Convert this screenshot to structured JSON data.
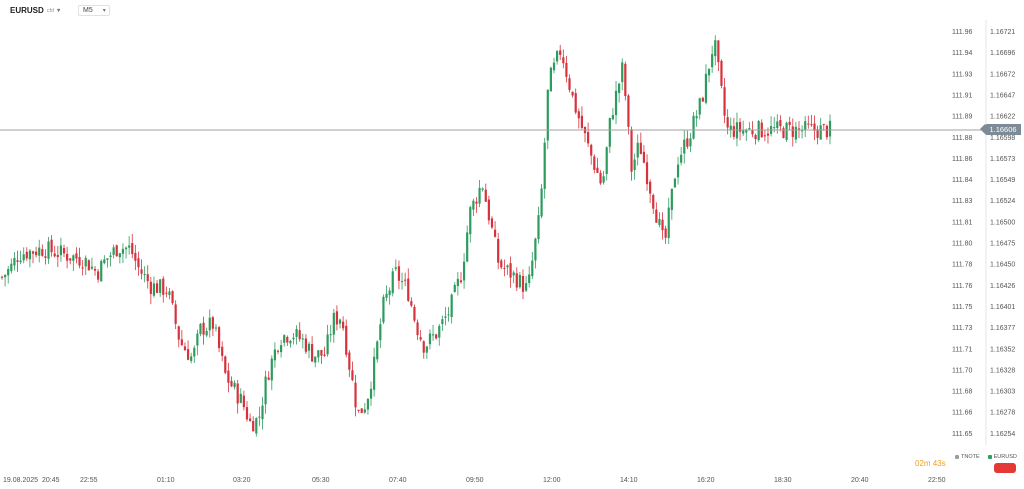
{
  "toolbar": {
    "symbol": "EURUSD",
    "symbol_sub": "cfd",
    "timeframe": "M5"
  },
  "axis_left": {
    "ticks": [
      111.96,
      111.94,
      111.93,
      111.91,
      111.89,
      111.88,
      111.86,
      111.84,
      111.83,
      111.81,
      111.8,
      111.78,
      111.76,
      111.75,
      111.73,
      111.71,
      111.7,
      111.68,
      111.66,
      111.65
    ],
    "labels": [
      "111.96",
      "111.94",
      "111.93",
      "111.91",
      "111.89",
      "111.88",
      "111.86",
      "111.84",
      "111.83",
      "111.81",
      "111.80",
      "111.78",
      "111.76",
      "111.75",
      "111.73",
      "111.71",
      "111.70",
      "111.68",
      "111.66",
      "111.65"
    ]
  },
  "axis_right": {
    "labels": [
      "1.16721",
      "1.16696",
      "1.16672",
      "1.16647",
      "1.16622",
      "1.16598",
      "1.16573",
      "1.16549",
      "1.16524",
      "1.16500",
      "1.16475",
      "1.16450",
      "1.16426",
      "1.16401",
      "1.16377",
      "1.16352",
      "1.16328",
      "1.16303",
      "1.16278",
      "1.16254"
    ]
  },
  "time_axis": [
    "19.08.2025",
    "20:45",
    "22:55",
    "01:10",
    "03:20",
    "05:30",
    "07:40",
    "09:50",
    "12:00",
    "14:10",
    "16:20",
    "18:30",
    "20:40",
    "22:50"
  ],
  "current_price": {
    "label": "1.16606",
    "value": 1.16606
  },
  "timer": "02m 43s",
  "legend": [
    {
      "label": "TNOTE",
      "color": "#9e9e9e"
    },
    {
      "label": "EURUSD",
      "color": "#26a65b"
    }
  ],
  "colors": {
    "up": "#2e9b5e",
    "down": "#d6323c",
    "grid_line": "#b0b0b0",
    "accent": "#f0a020",
    "action": "#e53935"
  },
  "chart_data": {
    "type": "candlestick",
    "y_range": [
      1.1624,
      1.1674
    ],
    "x_range": [
      0,
      1
    ],
    "x_tick_fractions": [
      0.02,
      0.057,
      0.097,
      0.174,
      0.267,
      0.355,
      0.452,
      0.55,
      0.649,
      0.744,
      0.836,
      0.944,
      1.0,
      1.09
    ],
    "close_path_x": [
      0,
      0.01,
      0.02,
      0.05,
      0.08,
      0.1,
      0.115,
      0.125,
      0.14,
      0.155,
      0.165,
      0.18,
      0.2,
      0.215,
      0.23,
      0.24,
      0.255,
      0.27,
      0.29,
      0.3,
      0.31,
      0.32,
      0.335,
      0.35,
      0.365,
      0.375,
      0.39,
      0.4,
      0.41,
      0.42,
      0.43,
      0.44,
      0.45,
      0.46,
      0.475,
      0.49,
      0.5,
      0.51,
      0.525,
      0.54,
      0.555,
      0.565,
      0.58,
      0.6,
      0.62,
      0.635,
      0.65,
      0.66,
      0.675,
      0.69,
      0.7,
      0.71,
      0.725,
      0.735,
      0.75,
      0.76,
      0.77,
      0.785,
      0.8,
      0.815,
      0.83,
      0.845,
      0.86,
      0.875
    ],
    "close_path_y": [
      1.16435,
      1.16445,
      1.16462,
      1.16468,
      1.1646,
      1.16455,
      1.1644,
      1.16455,
      1.1647,
      1.16468,
      1.16445,
      1.16425,
      1.1642,
      1.1636,
      1.1634,
      1.16375,
      1.1638,
      1.1632,
      1.1629,
      1.16265,
      1.1627,
      1.1632,
      1.16365,
      1.1637,
      1.1636,
      1.16345,
      1.16345,
      1.16385,
      1.1639,
      1.1633,
      1.16275,
      1.1629,
      1.16335,
      1.164,
      1.1644,
      1.1642,
      1.1638,
      1.16355,
      1.1637,
      1.16395,
      1.1644,
      1.1651,
      1.16545,
      1.1645,
      1.16435,
      1.1642,
      1.1651,
      1.1666,
      1.167,
      1.1664,
      1.1661,
      1.1658,
      1.1654,
      1.1662,
      1.1668,
      1.1656,
      1.1659,
      1.1653,
      1.1647,
      1.1657,
      1.166,
      1.1664,
      1.1671,
      1.16606
    ],
    "note_labels": []
  }
}
